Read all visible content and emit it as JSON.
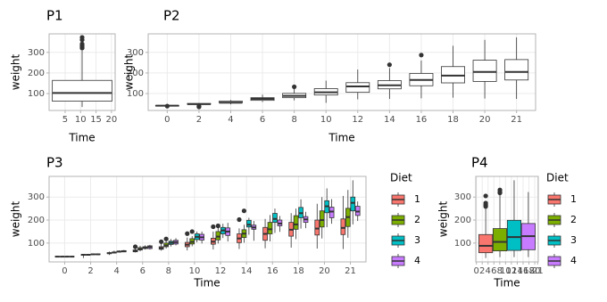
{
  "chart_data": [
    {
      "type": "box",
      "title": "P1",
      "x_label": "Time",
      "y_label": "weight",
      "x": [
        10.5
      ],
      "xlim": [
        -0.2,
        21.2
      ],
      "xticks": [
        5,
        10,
        15,
        20
      ],
      "ylim": [
        18,
        390
      ],
      "yticks": [
        100,
        200,
        300
      ],
      "grid": true,
      "min": [
        35
      ],
      "q1": [
        63
      ],
      "median": [
        103
      ],
      "q3": [
        164
      ],
      "max": [
        309
      ],
      "outliers": [
        [
          321,
          322,
          331,
          332,
          341,
          361,
          373
        ]
      ],
      "color": "#ffffff"
    },
    {
      "type": "box",
      "title": "P2",
      "x_label": "Time",
      "y_label": "weight",
      "categories": [
        "0",
        "2",
        "4",
        "6",
        "8",
        "10",
        "12",
        "14",
        "16",
        "18",
        "20",
        "21"
      ],
      "ylim": [
        18,
        390
      ],
      "yticks": [
        100,
        200,
        300
      ],
      "grid": true,
      "color": "#ffffff",
      "min": [
        40,
        45,
        48,
        59,
        67,
        55,
        72,
        74,
        77,
        80,
        76,
        74
      ],
      "q1": [
        41,
        48,
        57,
        67,
        80,
        93,
        106,
        123,
        138,
        152,
        159,
        166
      ],
      "median": [
        41,
        49,
        56,
        74,
        89,
        106,
        135,
        140,
        166,
        187,
        205,
        205
      ],
      "q3": [
        42,
        52,
        63,
        80,
        101,
        124,
        153,
        163,
        198,
        231,
        262,
        265
      ],
      "max": [
        43,
        55,
        69,
        95,
        124,
        163,
        217,
        224,
        261,
        332,
        361,
        373
      ],
      "outliers": [
        [
          39
        ],
        [
          35,
          39
        ],
        [],
        [],
        [
          133
        ],
        [],
        [],
        [
          240
        ],
        [
          287
        ],
        [],
        [],
        []
      ]
    },
    {
      "type": "box",
      "title": "P3",
      "x_label": "Time",
      "y_label": "weight",
      "legend_title": "Diet",
      "categories": [
        "0",
        "2",
        "4",
        "6",
        "8",
        "10",
        "12",
        "14",
        "16",
        "18",
        "20",
        "21"
      ],
      "ylim": [
        18,
        390
      ],
      "yticks": [
        100,
        200,
        300
      ],
      "grid": true,
      "series": [
        {
          "name": "1",
          "color": "#F8766D",
          "min": [
            39,
            35,
            48,
            59,
            67,
            68,
            72,
            74,
            77,
            80,
            76,
            74
          ],
          "q1": [
            41,
            47,
            54,
            62,
            73,
            84,
            95,
            102,
            112,
            130,
            135,
            137
          ],
          "median": [
            41,
            49,
            56,
            66,
            78,
            93,
            106,
            120,
            140,
            158,
            163,
            166
          ],
          "q3": [
            42,
            50,
            58,
            70,
            84,
            103,
            121,
            140,
            168,
            190,
            200,
            205
          ],
          "max": [
            43,
            52,
            63,
            77,
            98,
            124,
            150,
            164,
            205,
            230,
            271,
            305
          ],
          "outliers": [
            [],
            [],
            [],
            [
              84
            ],
            [
              106
            ],
            [
              141
            ],
            [
              171
            ],
            [
              202
            ],
            [],
            [],
            [],
            []
          ]
        },
        {
          "name": "2",
          "color": "#7CAE00",
          "min": [
            40,
            48,
            55,
            64,
            76,
            86,
            98,
            102,
            107,
            117,
            120,
            123
          ],
          "q1": [
            40,
            48,
            57,
            70,
            84,
            96,
            114,
            124,
            140,
            160,
            170,
            172
          ],
          "median": [
            41,
            49,
            59,
            74,
            90,
            105,
            128,
            141,
            160,
            181,
            200,
            213
          ],
          "q3": [
            41,
            50,
            61,
            80,
            100,
            119,
            150,
            158,
            190,
            219,
            240,
            251
          ],
          "max": [
            42,
            50,
            67,
            88,
            110,
            130,
            168,
            180,
            222,
            250,
            300,
            331
          ],
          "outliers": [
            [],
            [],
            [],
            [],
            [
              118
            ],
            [
              150
            ],
            [
              175
            ],
            [
              240
            ],
            [],
            [],
            [],
            []
          ]
        },
        {
          "name": "3",
          "color": "#00BFC4",
          "min": [
            39,
            49,
            59,
            72,
            85,
            103,
            122,
            136,
            144,
            163,
            169,
            181
          ],
          "q1": [
            41,
            50,
            61,
            76,
            94,
            115,
            140,
            170,
            190,
            210,
            232,
            240
          ],
          "median": [
            41,
            51,
            63,
            80,
            101,
            127,
            155,
            180,
            205,
            230,
            260,
            275
          ],
          "q3": [
            42,
            52,
            65,
            84,
            108,
            140,
            168,
            199,
            229,
            255,
            284,
            300
          ],
          "max": [
            42,
            53,
            68,
            90,
            118,
            150,
            184,
            210,
            250,
            290,
            338,
            373
          ],
          "outliers": [
            [],
            [],
            [],
            [],
            [],
            [],
            [],
            [],
            [],
            [],
            [],
            []
          ]
        },
        {
          "name": "4",
          "color": "#C77CFF",
          "min": [
            41,
            49,
            61,
            72,
            90,
            98,
            107,
            110,
            149,
            165,
            184,
            196
          ],
          "q1": [
            41,
            50,
            62,
            76,
            96,
            113,
            133,
            160,
            175,
            190,
            210,
            220
          ],
          "median": [
            41,
            51,
            64,
            83,
            104,
            125,
            150,
            168,
            185,
            203,
            237,
            237
          ],
          "q3": [
            42,
            53,
            67,
            88,
            112,
            138,
            166,
            178,
            200,
            215,
            256,
            260
          ],
          "max": [
            42,
            54,
            70,
            92,
            121,
            150,
            188,
            196,
            218,
            236,
            291,
            281
          ],
          "outliers": [
            [],
            [],
            [],
            [],
            [],
            [],
            [],
            [],
            [],
            [],
            [],
            []
          ]
        }
      ]
    },
    {
      "type": "box",
      "title": "P4",
      "x_label": "Time",
      "y_label": "weight",
      "legend_title": "Diet",
      "x": [
        10.5
      ],
      "xlim": [
        -0.2,
        21.2
      ],
      "xticks": [
        0,
        2,
        4,
        6,
        8,
        10,
        12,
        14,
        16,
        18,
        20,
        21
      ],
      "ylim": [
        18,
        390
      ],
      "yticks": [
        100,
        200,
        300
      ],
      "grid": true,
      "series": [
        {
          "name": "1",
          "color": "#F8766D",
          "min": [
            35
          ],
          "q1": [
            58
          ],
          "median": [
            88
          ],
          "q3": [
            137
          ],
          "max": [
            254
          ],
          "outliers": [
            [
              259,
              266,
              274,
              305
            ]
          ]
        },
        {
          "name": "2",
          "color": "#7CAE00",
          "min": [
            39
          ],
          "q1": [
            66
          ],
          "median": [
            105
          ],
          "q3": [
            163
          ],
          "max": [
            309
          ],
          "outliers": [
            [
              318,
              322,
              331
            ]
          ]
        },
        {
          "name": "3",
          "color": "#00BFC4",
          "min": [
            39
          ],
          "q1": [
            68
          ],
          "median": [
            126
          ],
          "q3": [
            199
          ],
          "max": [
            373
          ],
          "outliers": [
            []
          ]
        },
        {
          "name": "4",
          "color": "#C77CFF",
          "min": [
            39
          ],
          "q1": [
            71
          ],
          "median": [
            130
          ],
          "q3": [
            185
          ],
          "max": [
            322
          ],
          "outliers": [
            []
          ]
        }
      ]
    }
  ]
}
